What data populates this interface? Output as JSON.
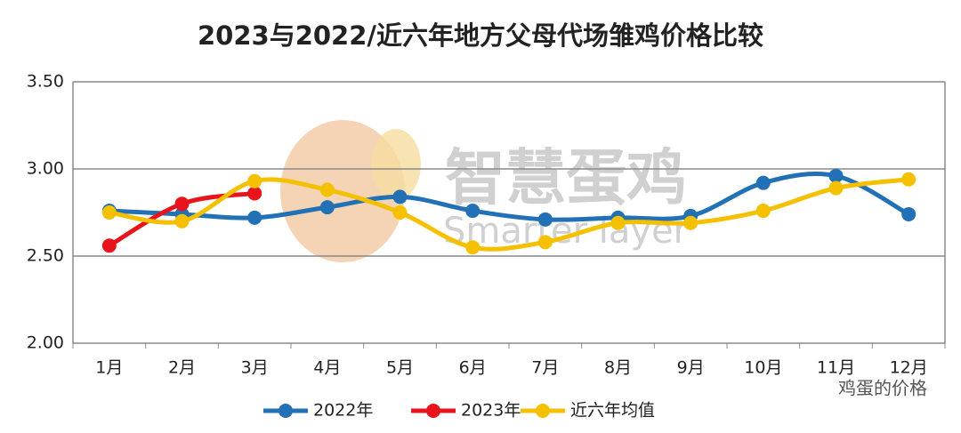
{
  "chart_data": {
    "type": "line",
    "title": "2023与2022/近六年地方父母代场雏鸡价格比较",
    "categories": [
      "1月",
      "2月",
      "3月",
      "4月",
      "5月",
      "6月",
      "7月",
      "8月",
      "9月",
      "10月",
      "11月",
      "12月"
    ],
    "series": [
      {
        "name": "2022年",
        "color": "#2270b5",
        "values": [
          2.76,
          2.74,
          2.72,
          2.78,
          2.84,
          2.76,
          2.71,
          2.72,
          2.73,
          2.92,
          2.96,
          2.74
        ]
      },
      {
        "name": "2023年",
        "color": "#e8141b",
        "values": [
          2.56,
          2.8,
          2.86,
          null,
          null,
          null,
          null,
          null,
          null,
          null,
          null,
          null
        ]
      },
      {
        "name": "近六年均值",
        "color": "#f5c000",
        "values": [
          2.75,
          2.7,
          2.93,
          2.88,
          2.75,
          2.55,
          2.58,
          2.69,
          2.69,
          2.76,
          2.89,
          2.94
        ]
      }
    ],
    "ylim": [
      2.0,
      3.5
    ],
    "yticks": [
      {
        "value": 2.0,
        "label": "2.00"
      },
      {
        "value": 2.5,
        "label": "2.50"
      },
      {
        "value": 3.0,
        "label": "3.00"
      },
      {
        "value": 3.5,
        "label": "3.50"
      }
    ],
    "grid": true,
    "legend": "bottom",
    "watermark": [
      "智慧蛋鸡",
      "Smarter layer"
    ],
    "annotation": "鸡蛋的价格"
  }
}
